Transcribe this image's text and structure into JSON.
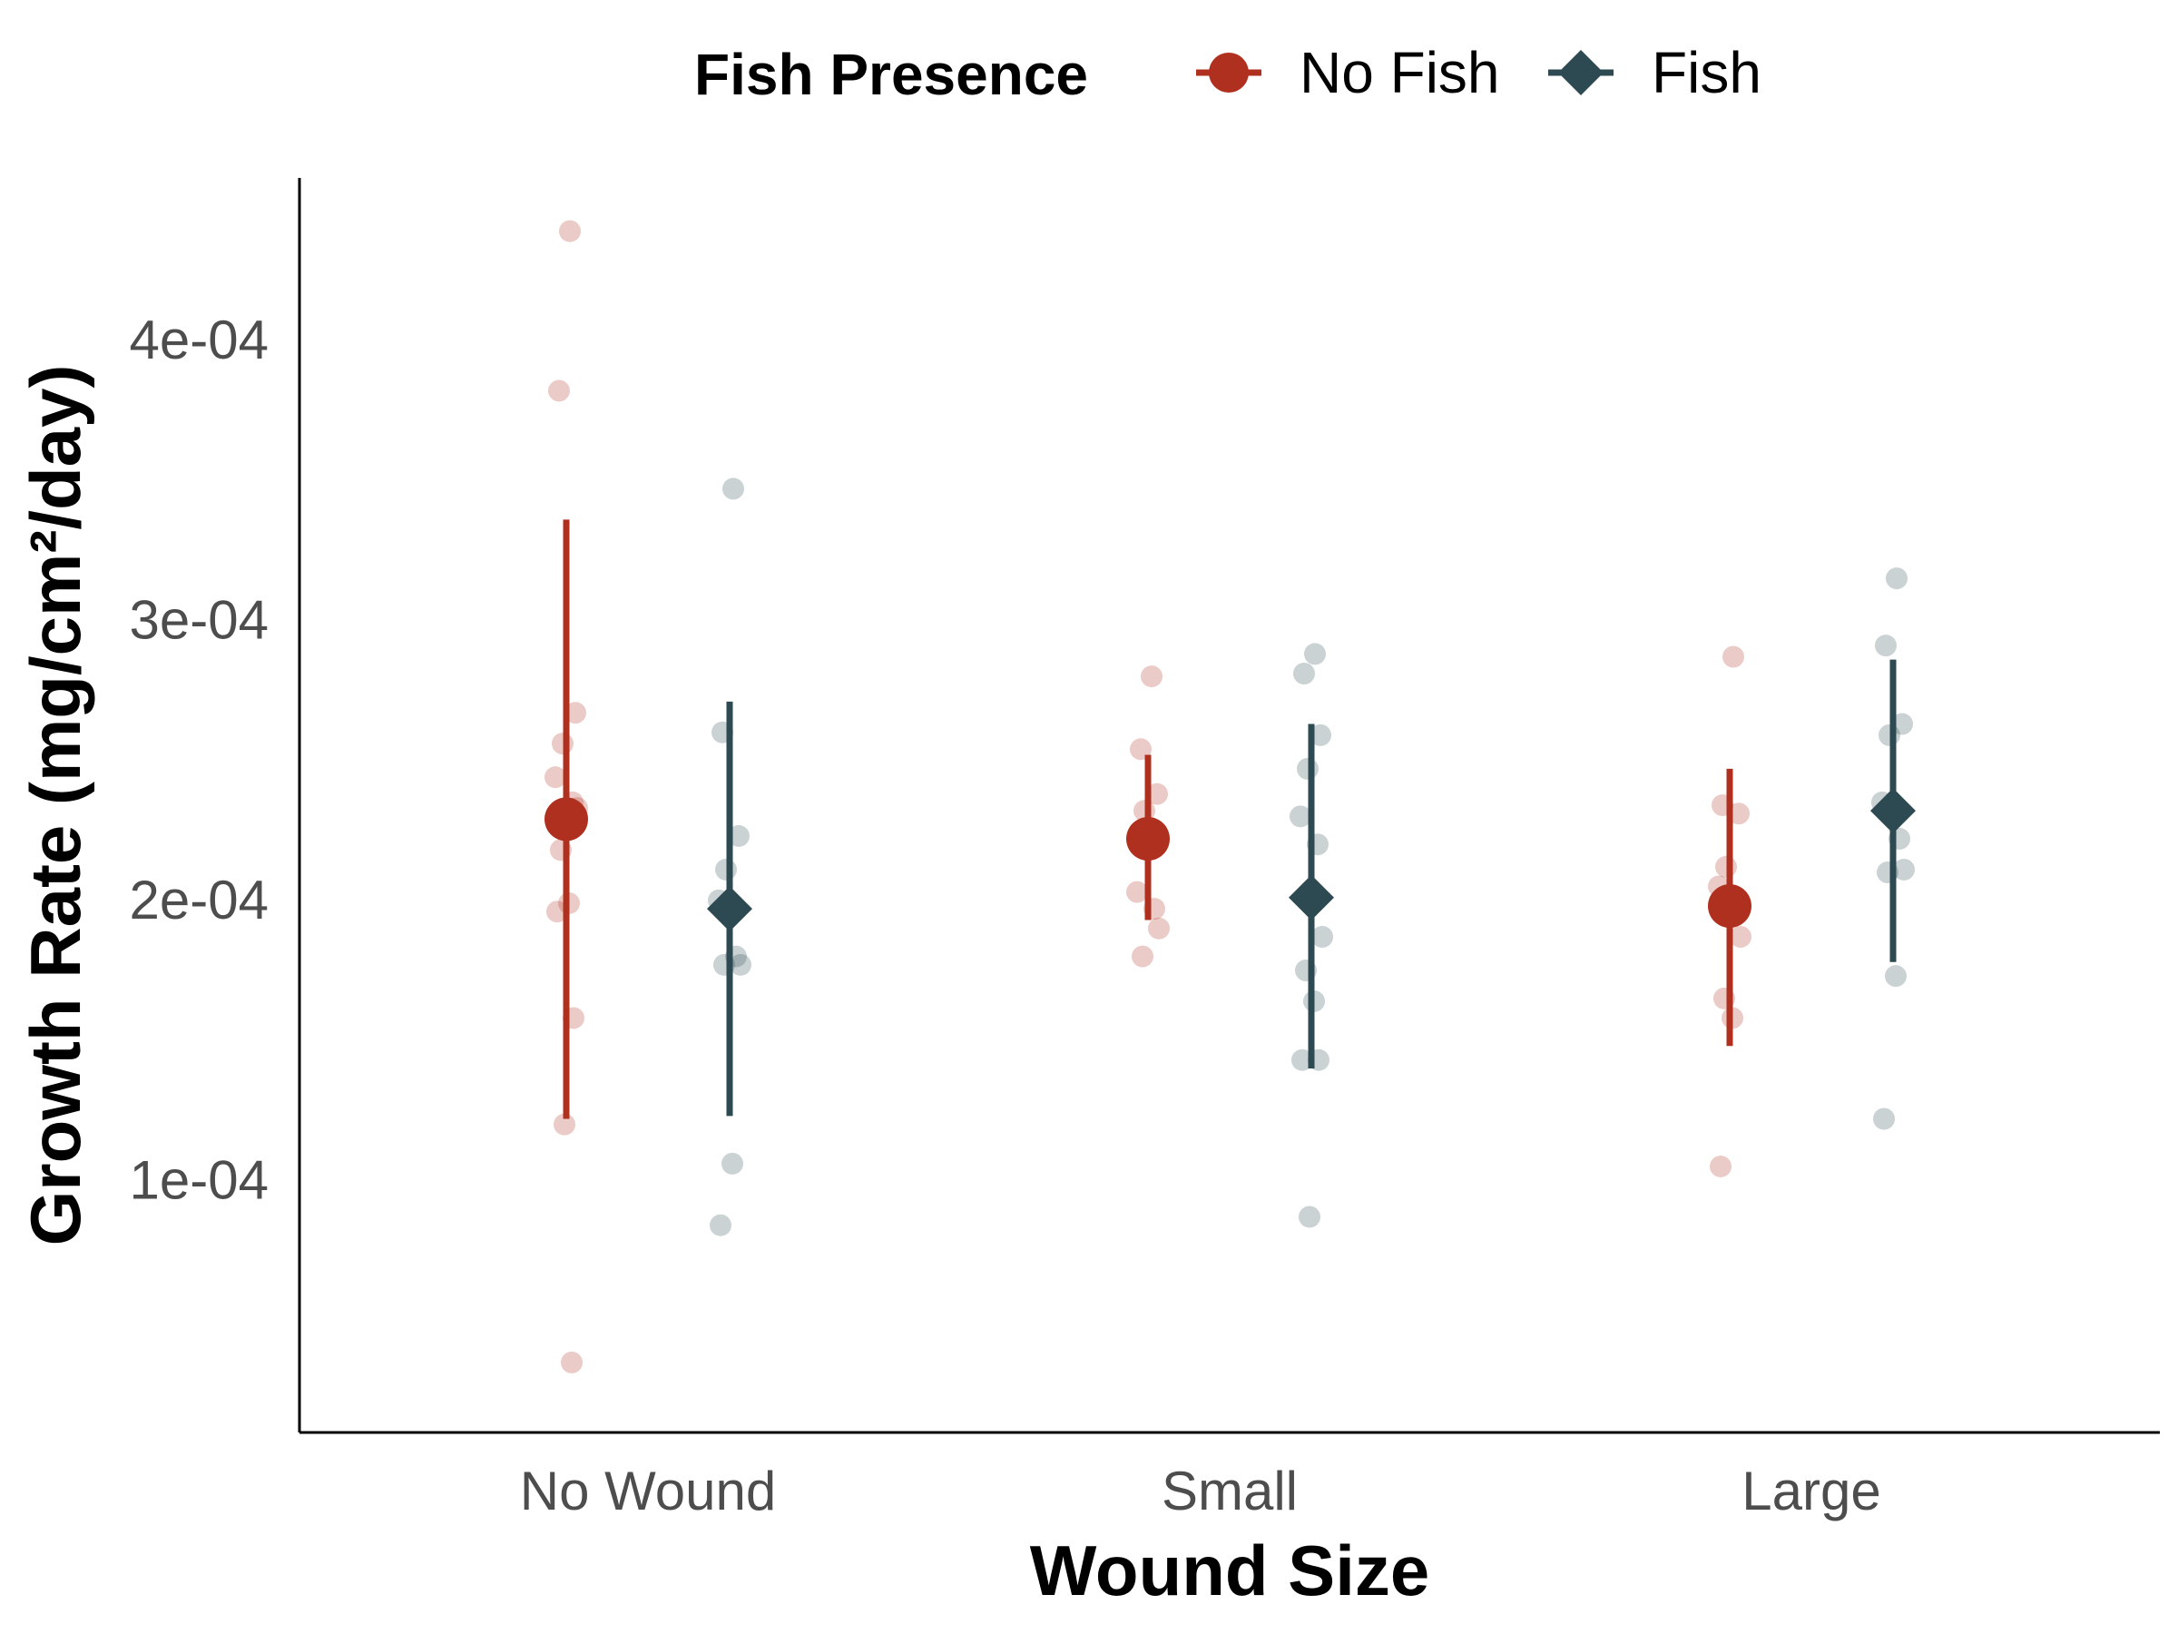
{
  "chart_data": {
    "type": "scatter",
    "xlabel": "Wound Size",
    "ylabel": "Growth Rate (mg/cm²/day)",
    "categories": [
      "No Wound",
      "Small",
      "Large"
    ],
    "y_ticks": [
      "1e-04",
      "2e-04",
      "3e-04",
      "4e-04"
    ],
    "ylim": [
      1e-05,
      0.000458
    ],
    "legend": {
      "title": "Fish Presence",
      "position": "top"
    },
    "series": [
      {
        "name": "No Fish",
        "color": "#B03020",
        "marker": "circle",
        "means": [
          0.000229,
          0.000222,
          0.000198
        ],
        "ci_low": [
          0.000122,
          0.000193,
          0.000148
        ],
        "ci_high": [
          0.000336,
          0.000252,
          0.000247
        ],
        "points": [
          [
            0.000439,
            0.000382,
            0.000267,
            0.000256,
            0.000244,
            0.000235,
            0.000233,
            0.000218,
            0.000199,
            0.000196,
            0.000158,
            0.00012,
            3.5e-05
          ],
          [
            0.00028,
            0.000254,
            0.000238,
            0.000232,
            0.000203,
            0.000197,
            0.00019,
            0.00018
          ],
          [
            0.000287,
            0.000234,
            0.000231,
            0.000212,
            0.000205,
            0.000197,
            0.000187,
            0.000165,
            0.000158,
            0.000105
          ]
        ]
      },
      {
        "name": "Fish",
        "color": "#2D4A52",
        "marker": "diamond",
        "means": [
          0.000197,
          0.000201,
          0.000232
        ],
        "ci_low": [
          0.000123,
          0.00014,
          0.000178
        ],
        "ci_high": [
          0.000271,
          0.000263,
          0.000286
        ],
        "points": [
          [
            0.000347,
            0.00026,
            0.000223,
            0.000211,
            0.0002,
            0.00018,
            0.000177,
            0.000177,
            0.000106,
            8.4e-05
          ],
          [
            0.000288,
            0.000281,
            0.000259,
            0.000247,
            0.00023,
            0.00022,
            0.000187,
            0.000175,
            0.000164,
            0.000143,
            0.000143,
            8.7e-05
          ],
          [
            0.000315,
            0.000291,
            0.000263,
            0.000259,
            0.000235,
            0.000222,
            0.000211,
            0.00021,
            0.000173,
            0.000122
          ]
        ]
      }
    ]
  }
}
